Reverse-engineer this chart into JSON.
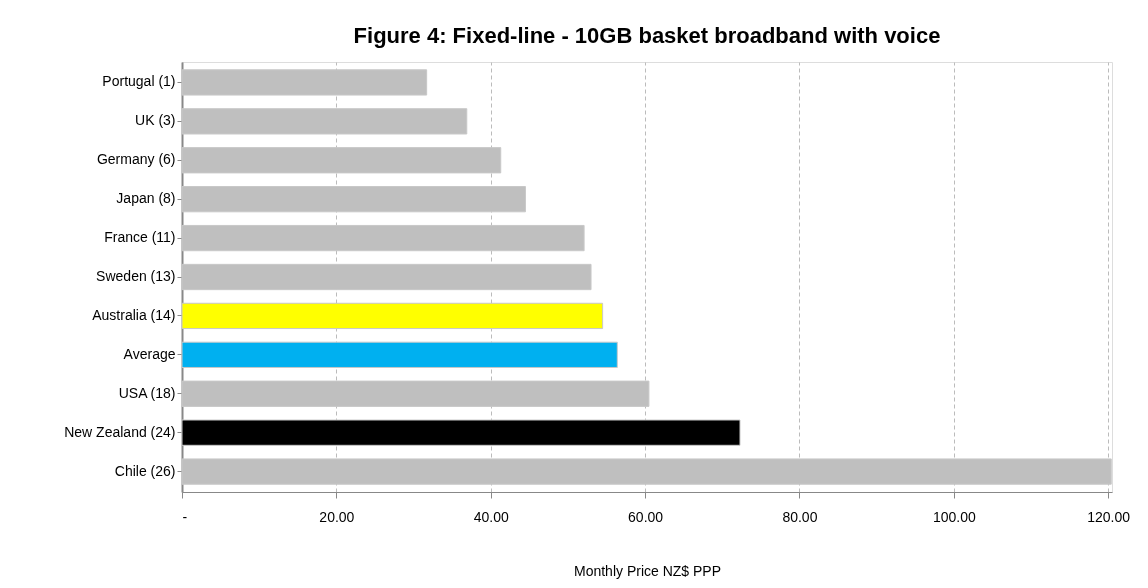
{
  "chart_data": {
    "type": "bar",
    "orientation": "horizontal",
    "title": "Figure 4: Fixed-line - 10GB basket broadband with voice",
    "xlabel": "Monthly  Price  NZ$  PPP",
    "categories": [
      "Portugal (1)",
      "UK (3)",
      "Germany (6)",
      "Japan (8)",
      "France (11)",
      "Sweden (13)",
      "Australia (14)",
      "Average",
      "USA (18)",
      "New Zealand  (24)",
      "Chile (26)"
    ],
    "values": [
      31.7,
      36.9,
      41.3,
      44.5,
      52.1,
      53.0,
      54.5,
      56.4,
      60.5,
      72.3,
      120.4
    ],
    "colors": [
      "#bfbfbf",
      "#bfbfbf",
      "#bfbfbf",
      "#bfbfbf",
      "#bfbfbf",
      "#bfbfbf",
      "#ffff00",
      "#00b0f0",
      "#bfbfbf",
      "#000000",
      "#bfbfbf"
    ],
    "xlim": [
      0,
      120.5
    ],
    "xticks": [
      {
        "value": 0,
        "label": "-"
      },
      {
        "value": 20,
        "label": "20.00"
      },
      {
        "value": 40,
        "label": "40.00"
      },
      {
        "value": 60,
        "label": "60.00"
      },
      {
        "value": 80,
        "label": "80.00"
      },
      {
        "value": 100,
        "label": "100.00"
      },
      {
        "value": 120,
        "label": "120.00"
      }
    ],
    "grid": "x"
  }
}
